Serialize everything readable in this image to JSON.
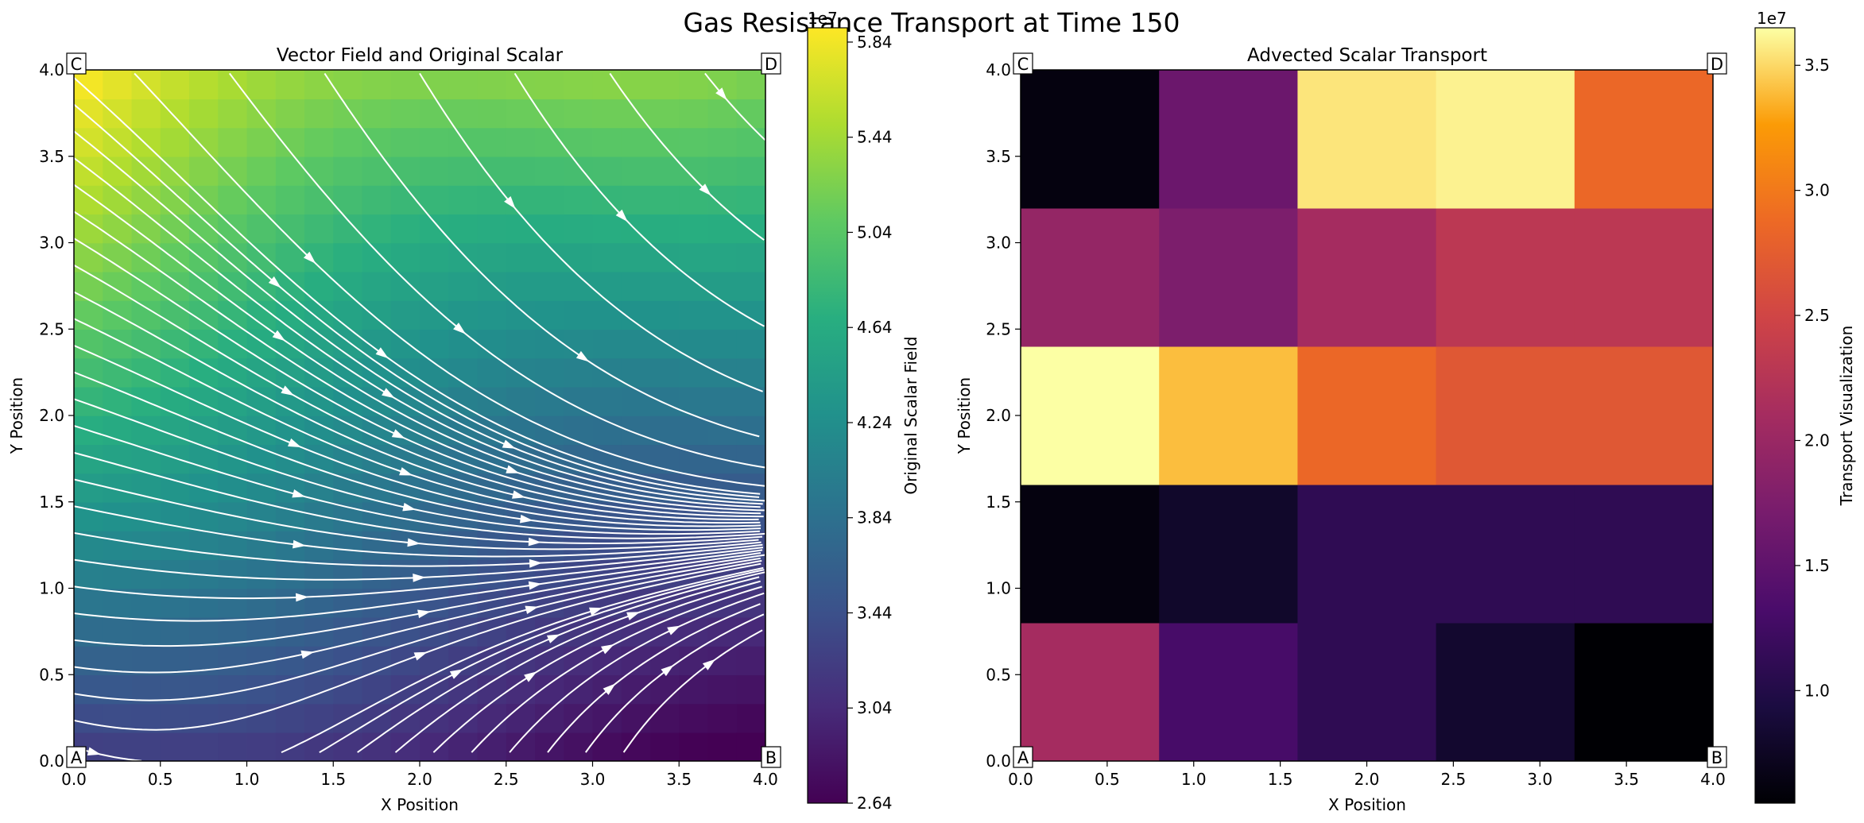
{
  "figure": {
    "suptitle": "Gas Resistance Transport at Time 150"
  },
  "corner_labels": {
    "bottom_left": "A",
    "bottom_right": "B",
    "top_left": "C",
    "top_right": "D"
  },
  "chart_data": [
    {
      "type": "heatmap",
      "subtype": "streamplot over continuous scalar field",
      "title": "Vector Field and Original Scalar",
      "xlabel": "X Position",
      "ylabel": "Y Position",
      "xlim": [
        0.0,
        4.0
      ],
      "ylim": [
        0.0,
        4.0
      ],
      "xticks": [
        "0.0",
        "0.5",
        "1.0",
        "1.5",
        "2.0",
        "2.5",
        "3.0",
        "3.5",
        "4.0"
      ],
      "yticks": [
        "0.0",
        "0.5",
        "1.0",
        "1.5",
        "2.0",
        "2.5",
        "3.0",
        "3.5",
        "4.0"
      ],
      "colormap": "viridis",
      "streamline_color": "#ffffff",
      "scalar_description": "Scalar increases from about 2.7e7 at lower-right to about 5.9e7 at upper-left",
      "scalar_corner_values": {
        "x0_y0": 32000000,
        "x4_y0": 26500000,
        "x0_y4": 59000000,
        "x4_y4": 50500000
      },
      "grid": false,
      "colorbar": {
        "label": "Original Scalar Field",
        "offset_text": "1e7",
        "range": [
          26400000,
          59000000
        ],
        "ticks": [
          "2.64",
          "3.04",
          "3.44",
          "3.84",
          "4.24",
          "4.64",
          "5.04",
          "5.44",
          "5.84"
        ]
      }
    },
    {
      "type": "heatmap",
      "title": "Advected Scalar Transport",
      "xlabel": "X Position",
      "ylabel": "Y Position",
      "xlim": [
        0.0,
        4.0
      ],
      "ylim": [
        0.0,
        4.0
      ],
      "xticks": [
        "0.0",
        "0.5",
        "1.0",
        "1.5",
        "2.0",
        "2.5",
        "3.0",
        "3.5",
        "4.0"
      ],
      "yticks": [
        "0.0",
        "0.5",
        "1.0",
        "1.5",
        "2.0",
        "2.5",
        "3.0",
        "3.5",
        "4.0"
      ],
      "colormap": "inferno",
      "grid": false,
      "cells_rows_bottom_to_top": [
        [
          21000000,
          13000000,
          11000000,
          8200000,
          5500000
        ],
        [
          6200000,
          8000000,
          11000000,
          11000000,
          11000000
        ],
        [
          36500000,
          34000000,
          28500000,
          27000000,
          27000000
        ],
        [
          19500000,
          17500000,
          21000000,
          23000000,
          23000000
        ],
        [
          6200000,
          16000000,
          35500000,
          36000000,
          28500000
        ]
      ],
      "colorbar": {
        "label": "Transport Visualization",
        "offset_text": "1e7",
        "range": [
          5500000,
          36500000
        ],
        "ticks": [
          "1.0",
          "1.5",
          "2.0",
          "2.5",
          "3.0",
          "3.5"
        ]
      }
    }
  ]
}
